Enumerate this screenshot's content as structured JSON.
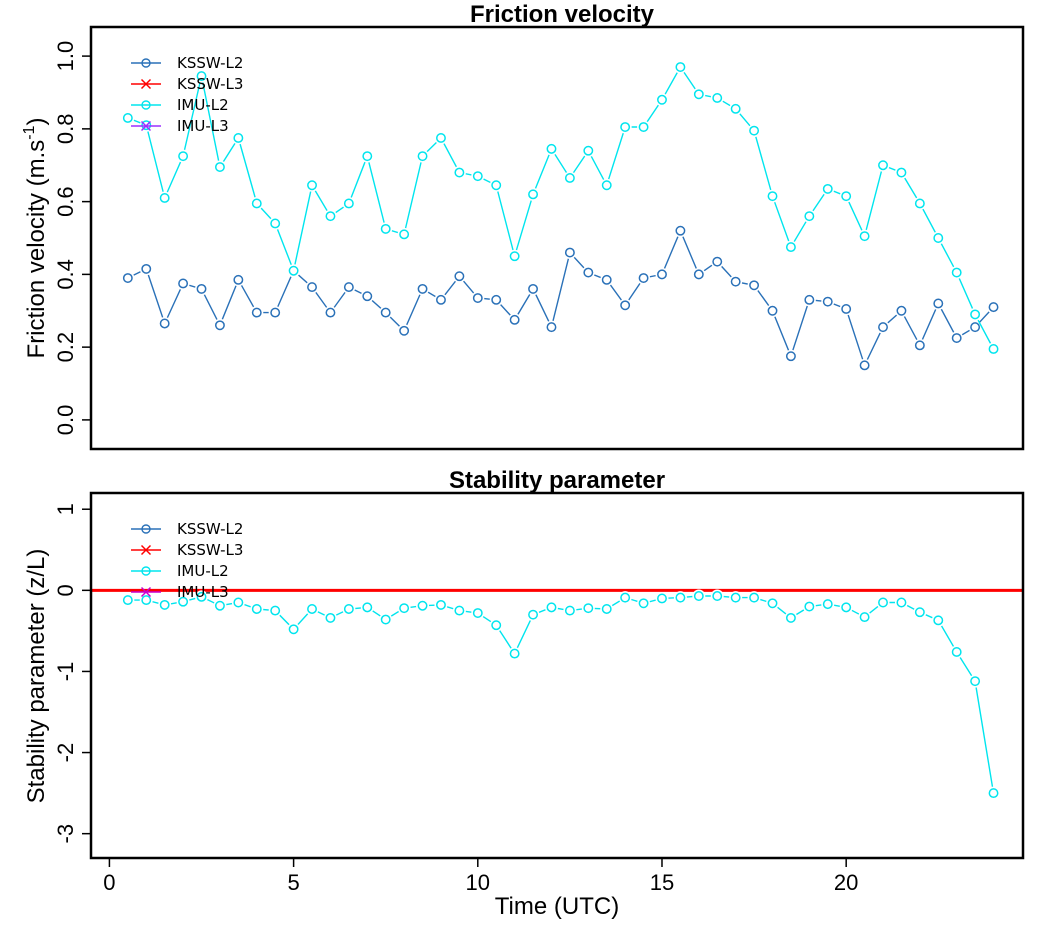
{
  "chart_data": [
    {
      "type": "line",
      "title": "Friction velocity",
      "ylabel_main": "Friction velocity (m.s",
      "ylabel_sup": "-1",
      "ylabel_end": ")",
      "xlim": [
        -0.5,
        24.8
      ],
      "ylim": [
        -0.08,
        1.08
      ],
      "yticks": [
        "0.0",
        "0.2",
        "0.4",
        "0.6",
        "0.8",
        "1.0"
      ],
      "ytick_values": [
        0,
        0.2,
        0.4,
        0.6,
        0.8,
        1.0
      ],
      "grid": false,
      "legend": {
        "placement": "top-left",
        "entries": [
          {
            "name": "KSSW-L2",
            "color": "#2a71b8",
            "marker": "circle"
          },
          {
            "name": "KSSW-L3",
            "color": "#ff0000",
            "marker": "x"
          },
          {
            "name": "IMU-L2",
            "color": "#00e5ee",
            "marker": "circle"
          },
          {
            "name": "IMU-L3",
            "color": "#9b30ff",
            "marker": "x"
          }
        ]
      },
      "series": [
        {
          "name": "KSSW-L2",
          "color": "#2a71b8",
          "x": [
            0.5,
            1.0,
            1.5,
            2.0,
            2.5,
            3.0,
            3.5,
            4.0,
            4.5,
            5.0,
            5.5,
            6.0,
            6.5,
            7.0,
            7.5,
            8.0,
            8.5,
            9.0,
            9.5,
            10.0,
            10.5,
            11.0,
            11.5,
            12.0,
            12.5,
            13.0,
            13.5,
            14.0,
            14.5,
            15.0,
            15.5,
            16.0,
            16.5,
            17.0,
            17.5,
            18.0,
            18.5,
            19.0,
            19.5,
            20.0,
            20.5,
            21.0,
            21.5,
            22.0,
            22.5,
            23.0,
            23.5,
            24.0
          ],
          "y": [
            0.39,
            0.415,
            0.265,
            0.375,
            0.36,
            0.26,
            0.385,
            0.295,
            0.295,
            0.41,
            0.365,
            0.295,
            0.365,
            0.34,
            0.295,
            0.245,
            0.36,
            0.33,
            0.395,
            0.335,
            0.33,
            0.275,
            0.36,
            0.255,
            0.46,
            0.405,
            0.385,
            0.315,
            0.39,
            0.4,
            0.52,
            0.4,
            0.435,
            0.38,
            0.37,
            0.3,
            0.175,
            0.33,
            0.325,
            0.305,
            0.15,
            0.255,
            0.3,
            0.205,
            0.32,
            0.225,
            0.255,
            0.31
          ]
        },
        {
          "name": "IMU-L2",
          "color": "#00e5ee",
          "x": [
            0.5,
            1.0,
            1.5,
            2.0,
            2.5,
            3.0,
            3.5,
            4.0,
            4.5,
            5.0,
            5.5,
            6.0,
            6.5,
            7.0,
            7.5,
            8.0,
            8.5,
            9.0,
            9.5,
            10.0,
            10.5,
            11.0,
            11.5,
            12.0,
            12.5,
            13.0,
            13.5,
            14.0,
            14.5,
            15.0,
            15.5,
            16.0,
            16.5,
            17.0,
            17.5,
            18.0,
            18.5,
            19.0,
            19.5,
            20.0,
            20.5,
            21.0,
            21.5,
            22.0,
            22.5,
            23.0,
            23.5,
            24.0
          ],
          "y": [
            0.83,
            0.81,
            0.61,
            0.725,
            0.945,
            0.695,
            0.775,
            0.595,
            0.54,
            0.41,
            0.645,
            0.56,
            0.595,
            0.725,
            0.525,
            0.51,
            0.725,
            0.775,
            0.68,
            0.67,
            0.645,
            0.45,
            0.62,
            0.745,
            0.665,
            0.74,
            0.645,
            0.805,
            0.805,
            0.88,
            0.97,
            0.895,
            0.885,
            0.855,
            0.795,
            0.615,
            0.475,
            0.56,
            0.635,
            0.615,
            0.505,
            0.7,
            0.68,
            0.595,
            0.5,
            0.405,
            0.29,
            0.195
          ]
        }
      ]
    },
    {
      "type": "line",
      "title": "Stability parameter",
      "ylabel": "Stability parameter (z/L)",
      "xlabel": "Time (UTC)",
      "xlim": [
        -0.5,
        24.8
      ],
      "ylim": [
        -3.3,
        1.2
      ],
      "xticks": [
        "0",
        "5",
        "10",
        "15",
        "20"
      ],
      "xtick_values": [
        0,
        5,
        10,
        15,
        20
      ],
      "yticks": [
        "1",
        "0",
        "-1",
        "-2",
        "-3"
      ],
      "ytick_values": [
        1,
        0,
        -1,
        -2,
        -3
      ],
      "grid": false,
      "legend": {
        "placement": "top-left",
        "entries": [
          {
            "name": "KSSW-L2",
            "color": "#2a71b8",
            "marker": "circle"
          },
          {
            "name": "KSSW-L3",
            "color": "#ff0000",
            "marker": "x"
          },
          {
            "name": "IMU-L2",
            "color": "#00e5ee",
            "marker": "circle"
          },
          {
            "name": "IMU-L3",
            "color": "#cc00cc",
            "marker": "x"
          }
        ]
      },
      "hline": {
        "y": 0,
        "color": "#ff0000"
      },
      "series": [
        {
          "name": "IMU-L2",
          "color": "#00e5ee",
          "x": [
            0.5,
            1.0,
            1.5,
            2.0,
            2.5,
            3.0,
            3.5,
            4.0,
            4.5,
            5.0,
            5.5,
            6.0,
            6.5,
            7.0,
            7.5,
            8.0,
            8.5,
            9.0,
            9.5,
            10.0,
            10.5,
            11.0,
            11.5,
            12.0,
            12.5,
            13.0,
            13.5,
            14.0,
            14.5,
            15.0,
            15.5,
            16.0,
            16.5,
            17.0,
            17.5,
            18.0,
            18.5,
            19.0,
            19.5,
            20.0,
            20.5,
            21.0,
            21.5,
            22.0,
            22.5,
            23.0,
            23.5,
            24.0
          ],
          "y": [
            -0.12,
            -0.12,
            -0.18,
            -0.14,
            -0.08,
            -0.19,
            -0.15,
            -0.23,
            -0.25,
            -0.48,
            -0.23,
            -0.34,
            -0.23,
            -0.21,
            -0.36,
            -0.22,
            -0.19,
            -0.18,
            -0.25,
            -0.28,
            -0.43,
            -0.78,
            -0.3,
            -0.21,
            -0.25,
            -0.22,
            -0.23,
            -0.09,
            -0.16,
            -0.1,
            -0.09,
            -0.07,
            -0.07,
            -0.09,
            -0.09,
            -0.16,
            -0.34,
            -0.2,
            -0.17,
            -0.21,
            -0.33,
            -0.15,
            -0.15,
            -0.27,
            -0.37,
            -0.76,
            -1.12,
            -2.5
          ]
        }
      ]
    }
  ]
}
